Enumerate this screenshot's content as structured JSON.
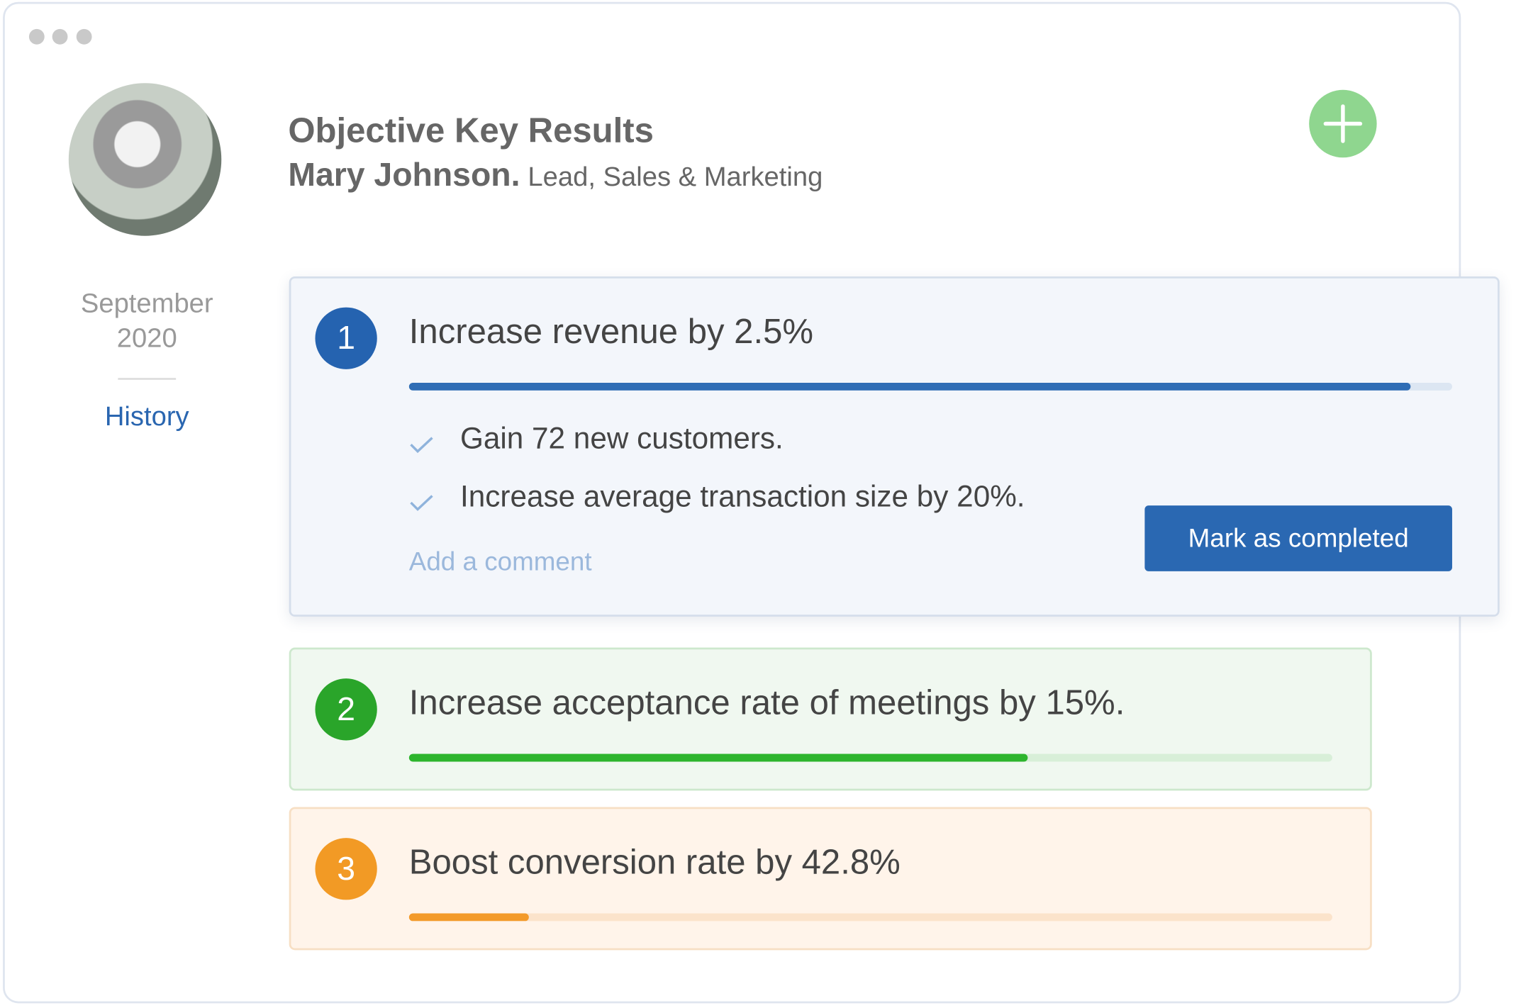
{
  "header": {
    "title": "Objective Key Results",
    "name": "Mary Johnson.",
    "role": "Lead, Sales & Marketing"
  },
  "sidebar": {
    "month": "September",
    "year": "2020",
    "link": "History"
  },
  "objectives": [
    {
      "number": 1,
      "title": "Increase revenue by 2.5%",
      "progress": 96,
      "color": "#2f6db5",
      "key_results": [
        "Gain 72 new customers.",
        "Increase average transaction size by 20%."
      ],
      "comment": "Add a comment",
      "button": "Mark as completed"
    },
    {
      "number": 2,
      "title": "Increase acceptance rate of meetings by 15%.",
      "progress": 67,
      "color": "#2db52d"
    },
    {
      "number": 3,
      "title": "Boost conversion rate by 42.8%",
      "progress": 13,
      "color": "#f39a2a"
    }
  ]
}
